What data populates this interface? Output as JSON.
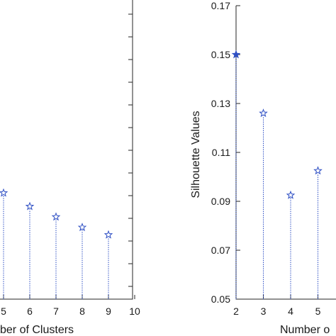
{
  "chart_data": [
    {
      "type": "stem",
      "xlabel": "ber of Clusters",
      "ylabel": "",
      "xlim": [
        4.6,
        10
      ],
      "ylim": [
        0,
        1
      ],
      "x_ticks": [
        "5",
        "6",
        "7",
        "8",
        "9",
        "10"
      ],
      "marker": "pentagram",
      "color": "#2e4fc4",
      "series": [
        {
          "x": [
            5,
            6,
            7,
            8,
            9
          ],
          "y": [
            0.355,
            0.31,
            0.275,
            0.24,
            0.215
          ]
        }
      ]
    },
    {
      "type": "stem",
      "xlabel": "Number o",
      "ylabel": "Silhouette Values",
      "xlim": [
        2,
        5.7
      ],
      "ylim": [
        0.05,
        0.17
      ],
      "x_ticks": [
        "2",
        "3",
        "4",
        "5"
      ],
      "y_ticks": [
        "0.05",
        "0.07",
        "0.09",
        "0.11",
        "0.13",
        "0.15",
        "0.17"
      ],
      "marker": "pentagram",
      "color": "#2e4fc4",
      "series": [
        {
          "x": [
            2,
            3,
            4,
            5
          ],
          "y": [
            0.15,
            0.126,
            0.0925,
            0.1025
          ]
        }
      ]
    }
  ]
}
